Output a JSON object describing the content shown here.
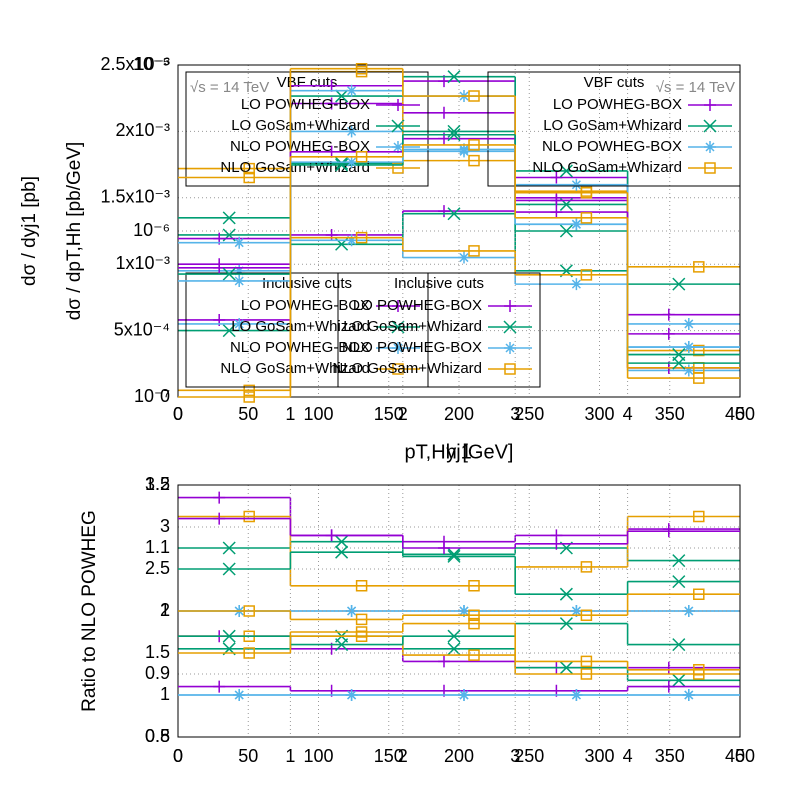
{
  "chart_data": [
    {
      "type": "step",
      "x_label": "pT,Hh [GeV]",
      "y_label": "dσ / dpT,Hh [pb/GeV]",
      "note": "√s = 14 TeV",
      "log": false,
      "grid": true,
      "bins": [
        0,
        80,
        160,
        240,
        320,
        400
      ],
      "xlim": [
        0,
        400
      ],
      "xticks": [
        0,
        50,
        100,
        150,
        200,
        250,
        300,
        350,
        400
      ],
      "ylim": [
        0,
        0.0025
      ],
      "yticks": [
        0,
        {
          "value": 0.0005,
          "label": "5x10⁻⁴"
        },
        {
          "value": 0.001,
          "label": "1x10⁻³"
        },
        {
          "value": 0.0015,
          "label": "1.5x10⁻³"
        },
        {
          "value": 0.002,
          "label": "2x10⁻³"
        },
        {
          "value": 0.0025,
          "label": "2.5x10⁻³"
        }
      ],
      "groups": [
        {
          "title": "VBF cuts",
          "series": [
            {
              "name": "LO POWHEG-BOX",
              "color": "#9400d3",
              "values": [
                0.001,
                0.00221,
                0.00214,
                0.0015,
                0.00062
              ]
            },
            {
              "name": "LO GoSam+Whizard",
              "color": "#009e73",
              "values": [
                0.00122,
                0.00176,
                0.002,
                0.00145,
                0.00085
              ]
            },
            {
              "name": "NLO POWHEG-BOX",
              "color": "#56b4e9",
              "values": [
                0.00095,
                0.002,
                0.00185,
                0.0013,
                0.00055
              ]
            },
            {
              "name": "NLO GoSam+Whizard",
              "color": "#e69f00",
              "values": [
                0.00172,
                0.00245,
                0.00178,
                0.00155,
                0.00098
              ]
            }
          ]
        },
        {
          "title": "Inclusive cuts",
          "series": [
            {
              "name": "LO POWHEG-BOX",
              "color": "#9400d3",
              "values": [
                0.00058,
                0.00122,
                0.0014,
                0.00148,
                0.00022
              ]
            },
            {
              "name": "LO GoSam+Whizard",
              "color": "#009e73",
              "values": [
                0.0005,
                0.00115,
                0.00138,
                0.00095,
                0.00032
              ]
            },
            {
              "name": "NLO POWHEG-BOX",
              "color": "#56b4e9",
              "values": [
                0.00055,
                0.00118,
                0.00105,
                0.00085,
                0.0002
              ]
            },
            {
              "name": "NLO GoSam+Whizard",
              "color": "#e69f00",
              "values": [
                5e-05,
                0.0012,
                0.0011,
                0.00092,
                0.00035
              ]
            }
          ]
        }
      ]
    },
    {
      "type": "step",
      "x_label": "yj1",
      "y_label": "dσ / dyj1 [pb]",
      "note": "√s = 14 TeV",
      "log": true,
      "grid": true,
      "bins": [
        0,
        1,
        2,
        3,
        4,
        5
      ],
      "xlim": [
        0,
        5
      ],
      "xticks": [
        0,
        1,
        2,
        3,
        4,
        5
      ],
      "ylim": [
        1e-07,
        1e-05
      ],
      "yticks": [
        {
          "value": 1e-07,
          "label": "10⁻⁷"
        },
        {
          "value": 1e-06,
          "label": "10⁻⁶"
        },
        {
          "value": 1e-05,
          "label": "10⁻⁵"
        }
      ],
      "groups": [
        {
          "title": "VBF cuts",
          "series": [
            {
              "name": "LO POWHEG-BOX",
              "color": "#9400d3",
              "values": [
                9e-07,
                7.5e-06,
                8e-06,
                2.1e-06,
                1.5e-07
              ]
            },
            {
              "name": "LO GoSam+Whizard",
              "color": "#009e73",
              "values": [
                1.2e-06,
                6.5e-06,
                8.5e-06,
                2.3e-06,
                1.8e-07
              ]
            },
            {
              "name": "NLO POWHEG-BOX",
              "color": "#56b4e9",
              "values": [
                8.5e-07,
                7e-06,
                6.5e-06,
                1.9e-06,
                2e-07
              ]
            },
            {
              "name": "NLO GoSam+Whizard",
              "color": "#e69f00",
              "values": [
                2.1e-06,
                9.5e-06,
                6.5e-06,
                1.7e-06,
                1.5e-07
              ]
            }
          ]
        },
        {
          "title": "Inclusive cuts",
          "series": [
            {
              "name": "LO POWHEG-BOX",
              "color": "#9400d3",
              "values": [
                6e-07,
                3e-06,
                3.6e-06,
                1.3e-06,
                2.4e-07
              ]
            },
            {
              "name": "LO GoSam+Whizard",
              "color": "#009e73",
              "values": [
                5.5e-07,
                2.5e-06,
                3.8e-06,
                1e-06,
                1.6e-07
              ]
            },
            {
              "name": "NLO POWHEG-BOX",
              "color": "#56b4e9",
              "values": [
                5e-07,
                2.6e-06,
                3.1e-06,
                1.1e-06,
                2e-07
              ]
            },
            {
              "name": "NLO GoSam+Whizard",
              "color": "#e69f00",
              "values": [
                1e-07,
                2.8e-06,
                3.3e-06,
                1.2e-06,
                1.3e-07
              ]
            }
          ]
        }
      ]
    },
    {
      "type": "step",
      "y_label": "Ratio to NLO POWHEG",
      "log": false,
      "grid": true,
      "bins": [
        0,
        80,
        160,
        240,
        320,
        400
      ],
      "xlim": [
        0,
        400
      ],
      "xticks": [
        0,
        50,
        100,
        150,
        200,
        250,
        300,
        350,
        400
      ],
      "ylim": [
        0.8,
        1.2
      ],
      "yticks": [
        0.8,
        0.9,
        1,
        1.1,
        1.2
      ],
      "groups": [
        {
          "series": [
            {
              "color": "#9400d3",
              "values": [
                1.18,
                1.12,
                1.11,
                1.12,
                1.13
              ]
            },
            {
              "color": "#009e73",
              "values": [
                1.1,
                1.11,
                1.09,
                1.1,
                1.08
              ]
            },
            {
              "color": "#56b4e9",
              "values": [
                1,
                1,
                1,
                1,
                1
              ]
            },
            {
              "color": "#e69f00",
              "values": [
                1.15,
                1.04,
                1.04,
                1.07,
                1.15
              ]
            }
          ]
        },
        {
          "series": [
            {
              "color": "#9400d3",
              "values": [
                0.96,
                0.94,
                0.92,
                0.91,
                0.91
              ]
            },
            {
              "color": "#009e73",
              "values": [
                0.94,
                0.96,
                0.94,
                0.91,
                0.89
              ]
            },
            {
              "color": "#56b4e9",
              "values": [
                1,
                1,
                1,
                1,
                1
              ]
            },
            {
              "color": "#e69f00",
              "values": [
                0.96,
                0.96,
                0.93,
                0.9,
                0.9
              ]
            }
          ]
        }
      ]
    },
    {
      "type": "step",
      "log": false,
      "grid": true,
      "bins": [
        0,
        1,
        2,
        3,
        4,
        5
      ],
      "xlim": [
        0,
        5
      ],
      "xticks": [
        0,
        1,
        2,
        3,
        4,
        5
      ],
      "ylim": [
        0.5,
        3.5
      ],
      "yticks": [
        0.5,
        1,
        1.5,
        2,
        2.5,
        3,
        3.5
      ],
      "groups": [
        {
          "series": [
            {
              "color": "#9400d3",
              "values": [
                3.1,
                2.9,
                2.75,
                2.8,
                2.95
              ]
            },
            {
              "color": "#009e73",
              "values": [
                2.5,
                2.7,
                2.65,
                2.2,
                2.35
              ]
            },
            {
              "color": "#56b4e9",
              "values": [
                1,
                1,
                1,
                1,
                1
              ]
            },
            {
              "color": "#e69f00",
              "values": [
                2,
                1.9,
                1.95,
                1.95,
                2.2
              ]
            }
          ]
        },
        {
          "series": [
            {
              "color": "#9400d3",
              "values": [
                1.1,
                1.05,
                1.05,
                1.05,
                1.1
              ]
            },
            {
              "color": "#009e73",
              "values": [
                1.7,
                1.6,
                1.7,
                1.85,
                1.6
              ]
            },
            {
              "color": "#56b4e9",
              "values": [
                1,
                1,
                1,
                1,
                1
              ]
            },
            {
              "color": "#e69f00",
              "values": [
                1.5,
                1.75,
                1.85,
                1.4,
                1.3
              ]
            }
          ]
        }
      ]
    }
  ]
}
